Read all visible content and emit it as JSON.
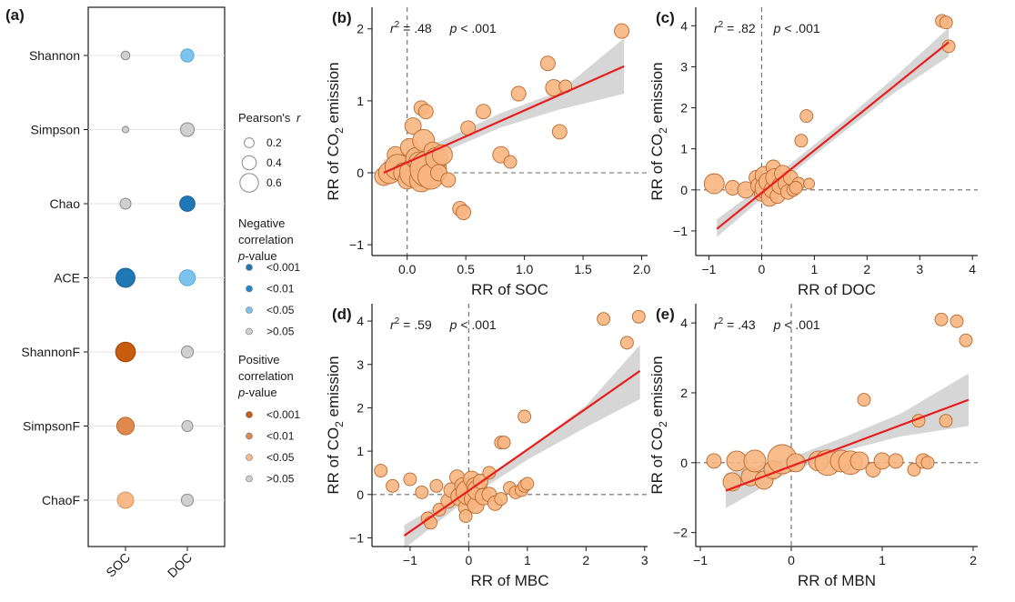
{
  "colors": {
    "point_fill": "#F7B581",
    "point_stroke": "#B8692E",
    "fit_line": "#E81E1E",
    "ci_band": "#CFCFCF",
    "neg1": "#1F77B4",
    "neg2": "#1E88D4",
    "neg3": "#7CC3EE",
    "ns": "#D0D0D0",
    "pos1": "#C95B0E",
    "pos2": "#DE8A4E",
    "pos3": "#F7B98A"
  },
  "panel_a": {
    "label": "(a)",
    "rows": [
      "Shannon",
      "Simpson",
      "Chao",
      "ACE",
      "ShannonF",
      "SimpsonF",
      "ChaoF"
    ],
    "columns": [
      "SOC",
      "DOC"
    ],
    "cells": [
      {
        "row": 0,
        "col": 0,
        "r": 0.15,
        "sig": "ns"
      },
      {
        "row": 0,
        "col": 1,
        "r": 0.35,
        "sig": "neg3"
      },
      {
        "row": 1,
        "col": 0,
        "r": 0.05,
        "sig": "ns"
      },
      {
        "row": 1,
        "col": 1,
        "r": 0.38,
        "sig": "ns"
      },
      {
        "row": 2,
        "col": 0,
        "r": 0.25,
        "sig": "ns"
      },
      {
        "row": 2,
        "col": 1,
        "r": 0.45,
        "sig": "neg1"
      },
      {
        "row": 3,
        "col": 0,
        "r": 0.62,
        "sig": "neg1"
      },
      {
        "row": 3,
        "col": 1,
        "r": 0.48,
        "sig": "neg3"
      },
      {
        "row": 4,
        "col": 0,
        "r": 0.65,
        "sig": "pos1"
      },
      {
        "row": 4,
        "col": 1,
        "r": 0.3,
        "sig": "ns"
      },
      {
        "row": 5,
        "col": 0,
        "r": 0.55,
        "sig": "pos2"
      },
      {
        "row": 5,
        "col": 1,
        "r": 0.25,
        "sig": "ns"
      },
      {
        "row": 6,
        "col": 0,
        "r": 0.5,
        "sig": "pos3"
      },
      {
        "row": 6,
        "col": 1,
        "r": 0.3,
        "sig": "ns"
      }
    ],
    "legend": {
      "size_title": "Pearson's",
      "size_title_r": "r",
      "size_items": [
        {
          "label": "0.2",
          "r": 0.2
        },
        {
          "label": "0.4",
          "r": 0.4
        },
        {
          "label": "0.6",
          "r": 0.6
        }
      ],
      "neg_title_1": "Negative",
      "neg_title_2": "correlation",
      "neg_title_p": "p",
      "neg_title_3": "-value",
      "neg_items": [
        {
          "label": "<0.001",
          "color": "#1F77B4"
        },
        {
          "label": "<0.01",
          "color": "#1E88D4"
        },
        {
          "label": "<0.05",
          "color": "#7CC3EE"
        },
        {
          "label": ">0.05",
          "color": "#D0D0D0"
        }
      ],
      "pos_title_1": "Positive",
      "pos_title_2": "correlation",
      "pos_title_p": "p",
      "pos_title_3": "-value",
      "pos_items": [
        {
          "label": "<0.001",
          "color": "#C95B0E"
        },
        {
          "label": "<0.01",
          "color": "#DE8A4E"
        },
        {
          "label": "<0.05",
          "color": "#F7B98A"
        },
        {
          "label": ">0.05",
          "color": "#D0D0D0"
        }
      ]
    }
  },
  "chart_data": [
    {
      "type": "scatter",
      "panel": "(b)",
      "xlabel": "RR of SOC",
      "ylabel": "RR of CO2 emission",
      "ylabel_pre": "RR of CO",
      "ylabel_sub": "2",
      "ylabel_post": " emission",
      "r2_text": " = .48",
      "p_text": " < .001",
      "xlim": [
        -0.3,
        2.05
      ],
      "ylim": [
        -1.15,
        2.3
      ],
      "xticks": [
        0.0,
        0.5,
        1.0,
        1.5,
        2.0
      ],
      "xtick_labels": [
        "0.0",
        "0.5",
        "1.0",
        "1.5",
        "2.0"
      ],
      "yticks": [
        -1,
        0,
        1,
        2
      ],
      "ytick_labels": [
        "−1",
        "0",
        "1",
        "2"
      ],
      "fit": {
        "x": [
          -0.2,
          1.85
        ],
        "y": [
          0.0,
          1.48
        ]
      },
      "band": {
        "x": [
          -0.2,
          0.3,
          0.8,
          1.3,
          1.85
        ],
        "lo": [
          -0.18,
          0.28,
          0.63,
          0.88,
          1.1
        ],
        "hi": [
          0.18,
          0.45,
          0.83,
          1.13,
          1.87
        ]
      },
      "points": [
        [
          -0.2,
          -0.05,
          10
        ],
        [
          -0.15,
          0.0,
          12
        ],
        [
          -0.1,
          0.25,
          9
        ],
        [
          -0.08,
          0.08,
          14
        ],
        [
          -0.03,
          0.0,
          11
        ],
        [
          0.0,
          -0.1,
          10
        ],
        [
          0.02,
          0.35,
          10
        ],
        [
          0.05,
          0.65,
          9
        ],
        [
          0.06,
          0.0,
          16
        ],
        [
          0.08,
          0.2,
          12
        ],
        [
          0.1,
          0.15,
          11
        ],
        [
          0.12,
          -0.1,
          13
        ],
        [
          0.14,
          0.45,
          12
        ],
        [
          0.12,
          0.9,
          8
        ],
        [
          0.16,
          0.85,
          8
        ],
        [
          0.18,
          0.05,
          20
        ],
        [
          0.2,
          -0.05,
          14
        ],
        [
          0.22,
          0.3,
          10
        ],
        [
          0.25,
          0.2,
          12
        ],
        [
          0.27,
          0.0,
          9
        ],
        [
          0.3,
          0.25,
          11
        ],
        [
          0.35,
          -0.1,
          8
        ],
        [
          0.45,
          -0.5,
          8
        ],
        [
          0.48,
          -0.55,
          8
        ],
        [
          0.52,
          0.62,
          8
        ],
        [
          0.65,
          0.85,
          8
        ],
        [
          0.8,
          0.25,
          9
        ],
        [
          0.88,
          0.15,
          7
        ],
        [
          0.95,
          1.1,
          8
        ],
        [
          1.2,
          1.52,
          8
        ],
        [
          1.25,
          1.18,
          9
        ],
        [
          1.3,
          0.57,
          8
        ],
        [
          1.35,
          1.2,
          7
        ],
        [
          1.83,
          1.97,
          8
        ]
      ]
    },
    {
      "type": "scatter",
      "panel": "(c)",
      "xlabel": "RR of DOC",
      "ylabel": "RR of CO2 emission",
      "ylabel_pre": "RR of CO",
      "ylabel_sub": "2",
      "ylabel_post": " emission",
      "r2_text": " = .82",
      "p_text": " < .001",
      "xlim": [
        -1.25,
        4.1
      ],
      "ylim": [
        -1.6,
        4.45
      ],
      "xticks": [
        -1,
        0,
        1,
        2,
        3,
        4
      ],
      "xtick_labels": [
        "−1",
        "0",
        "1",
        "2",
        "3",
        "4"
      ],
      "yticks": [
        -1,
        0,
        1,
        2,
        3,
        4
      ],
      "ytick_labels": [
        "−1",
        "0",
        "1",
        "2",
        "3",
        "4"
      ],
      "fit": {
        "x": [
          -0.85,
          3.55
        ],
        "y": [
          -0.95,
          3.6
        ]
      },
      "band": {
        "x": [
          -0.85,
          0.3,
          1.5,
          2.5,
          3.55
        ],
        "lo": [
          -1.15,
          0.12,
          1.35,
          2.35,
          3.25
        ],
        "hi": [
          -0.72,
          0.38,
          1.62,
          2.72,
          3.95
        ]
      },
      "points": [
        [
          -0.9,
          0.15,
          11
        ],
        [
          -0.55,
          0.05,
          8
        ],
        [
          -0.3,
          0.0,
          9
        ],
        [
          -0.1,
          0.3,
          8
        ],
        [
          -0.05,
          0.1,
          9
        ],
        [
          0.0,
          -0.1,
          8
        ],
        [
          0.05,
          0.35,
          10
        ],
        [
          0.08,
          0.05,
          12
        ],
        [
          0.12,
          0.2,
          10
        ],
        [
          0.15,
          -0.2,
          9
        ],
        [
          0.2,
          0.0,
          9
        ],
        [
          0.22,
          0.55,
          8
        ],
        [
          0.25,
          0.3,
          10
        ],
        [
          0.3,
          -0.15,
          8
        ],
        [
          0.35,
          0.1,
          9
        ],
        [
          0.4,
          0.4,
          9
        ],
        [
          0.45,
          0.15,
          8
        ],
        [
          0.5,
          -0.05,
          8
        ],
        [
          0.55,
          0.3,
          8
        ],
        [
          0.6,
          0.0,
          7
        ],
        [
          0.7,
          0.15,
          7
        ],
        [
          0.75,
          1.2,
          7
        ],
        [
          0.85,
          1.8,
          7
        ],
        [
          0.9,
          0.15,
          6
        ],
        [
          3.42,
          4.12,
          7
        ],
        [
          3.5,
          4.08,
          7
        ],
        [
          3.55,
          3.5,
          7
        ],
        [
          0.65,
          0.05,
          7
        ]
      ]
    },
    {
      "type": "scatter",
      "panel": "(d)",
      "xlabel": "RR of MBC",
      "ylabel": "RR of CO2 emission",
      "ylabel_pre": "RR of CO",
      "ylabel_sub": "2",
      "ylabel_post": " emission",
      "r2_text": " = .59",
      "p_text": " < .001",
      "xlim": [
        -1.65,
        3.05
      ],
      "ylim": [
        -1.2,
        4.4
      ],
      "xticks": [
        -1,
        0,
        1,
        2,
        3
      ],
      "xtick_labels": [
        "−1",
        "0",
        "1",
        "2",
        "3"
      ],
      "yticks": [
        -1,
        0,
        1,
        2,
        3,
        4
      ],
      "ytick_labels": [
        "−1",
        "0",
        "1",
        "2",
        "3",
        "4"
      ],
      "fit": {
        "x": [
          -1.1,
          2.92
        ],
        "y": [
          -0.95,
          2.85
        ]
      },
      "band": {
        "x": [
          -1.1,
          0.0,
          1.0,
          2.0,
          2.92
        ],
        "lo": [
          -1.25,
          -0.08,
          0.8,
          1.55,
          2.2
        ],
        "hi": [
          -0.7,
          0.15,
          1.05,
          2.05,
          3.45
        ]
      },
      "points": [
        [
          -1.5,
          0.55,
          7
        ],
        [
          -1.3,
          0.2,
          7
        ],
        [
          -1.0,
          0.35,
          7
        ],
        [
          -0.8,
          0.05,
          7
        ],
        [
          -0.7,
          -0.55,
          7
        ],
        [
          -0.65,
          -0.65,
          7
        ],
        [
          -0.55,
          0.2,
          7
        ],
        [
          -0.5,
          -0.35,
          7
        ],
        [
          -0.35,
          -0.15,
          8
        ],
        [
          -0.3,
          0.1,
          8
        ],
        [
          -0.2,
          0.4,
          8
        ],
        [
          -0.15,
          -0.05,
          10
        ],
        [
          -0.1,
          0.2,
          9
        ],
        [
          -0.05,
          -0.3,
          8
        ],
        [
          0.0,
          0.05,
          14
        ],
        [
          0.05,
          0.35,
          9
        ],
        [
          0.08,
          -0.1,
          10
        ],
        [
          0.1,
          0.2,
          9
        ],
        [
          0.12,
          -0.25,
          9
        ],
        [
          0.15,
          0.1,
          11
        ],
        [
          0.2,
          0.3,
          8
        ],
        [
          0.25,
          -0.05,
          9
        ],
        [
          0.35,
          0.0,
          8
        ],
        [
          0.45,
          -0.2,
          8
        ],
        [
          0.55,
          -0.1,
          7
        ],
        [
          0.7,
          0.15,
          7
        ],
        [
          0.8,
          0.05,
          7
        ],
        [
          0.9,
          0.1,
          7
        ],
        [
          0.95,
          1.8,
          7
        ],
        [
          0.95,
          0.2,
          7
        ],
        [
          1.0,
          0.25,
          7
        ],
        [
          -0.05,
          -0.5,
          7
        ],
        [
          0.35,
          0.5,
          7
        ],
        [
          0.55,
          1.2,
          7
        ],
        [
          0.6,
          1.2,
          7
        ],
        [
          2.3,
          4.05,
          7
        ],
        [
          2.7,
          3.5,
          7
        ],
        [
          2.9,
          4.1,
          7
        ]
      ]
    },
    {
      "type": "scatter",
      "panel": "(e)",
      "xlabel": "RR of MBN",
      "ylabel": "RR of CO2 emission",
      "ylabel_pre": "RR of CO",
      "ylabel_sub": "2",
      "ylabel_post": " emission",
      "r2_text": " = .43",
      "p_text": " < .001",
      "xlim": [
        -1.05,
        2.05
      ],
      "ylim": [
        -2.4,
        4.55
      ],
      "xticks": [
        -1,
        0,
        1,
        2
      ],
      "xtick_labels": [
        "−1",
        "0",
        "1",
        "2"
      ],
      "yticks": [
        -2,
        0,
        2,
        4
      ],
      "ytick_labels": [
        "−2",
        "0",
        "2",
        "4"
      ],
      "fit": {
        "x": [
          -0.72,
          1.95
        ],
        "y": [
          -0.8,
          1.8
        ]
      },
      "band": {
        "x": [
          -0.72,
          0.0,
          0.6,
          1.2,
          1.95
        ],
        "lo": [
          -1.3,
          -0.25,
          0.35,
          0.75,
          1.05
        ],
        "hi": [
          -0.3,
          0.15,
          0.75,
          1.4,
          2.55
        ]
      },
      "points": [
        [
          -0.85,
          0.05,
          8
        ],
        [
          -0.65,
          -0.55,
          10
        ],
        [
          -0.6,
          0.05,
          11
        ],
        [
          -0.45,
          -0.4,
          10
        ],
        [
          -0.4,
          0.05,
          12
        ],
        [
          -0.3,
          -0.5,
          10
        ],
        [
          -0.2,
          -0.2,
          10
        ],
        [
          -0.1,
          0.1,
          16
        ],
        [
          0.05,
          0.0,
          10
        ],
        [
          0.3,
          0.05,
          11
        ],
        [
          0.4,
          0.0,
          14
        ],
        [
          0.55,
          0.05,
          12
        ],
        [
          0.65,
          0.0,
          13
        ],
        [
          0.75,
          0.05,
          10
        ],
        [
          0.9,
          -0.2,
          8
        ],
        [
          1.0,
          0.05,
          9
        ],
        [
          1.15,
          0.05,
          8
        ],
        [
          1.35,
          -0.2,
          7
        ],
        [
          1.45,
          0.05,
          8
        ],
        [
          0.8,
          1.8,
          7
        ],
        [
          1.4,
          1.2,
          7
        ],
        [
          1.5,
          0.0,
          7
        ],
        [
          1.65,
          4.1,
          7
        ],
        [
          1.7,
          1.2,
          7
        ],
        [
          1.82,
          4.05,
          7
        ],
        [
          1.92,
          3.5,
          7
        ]
      ]
    }
  ]
}
